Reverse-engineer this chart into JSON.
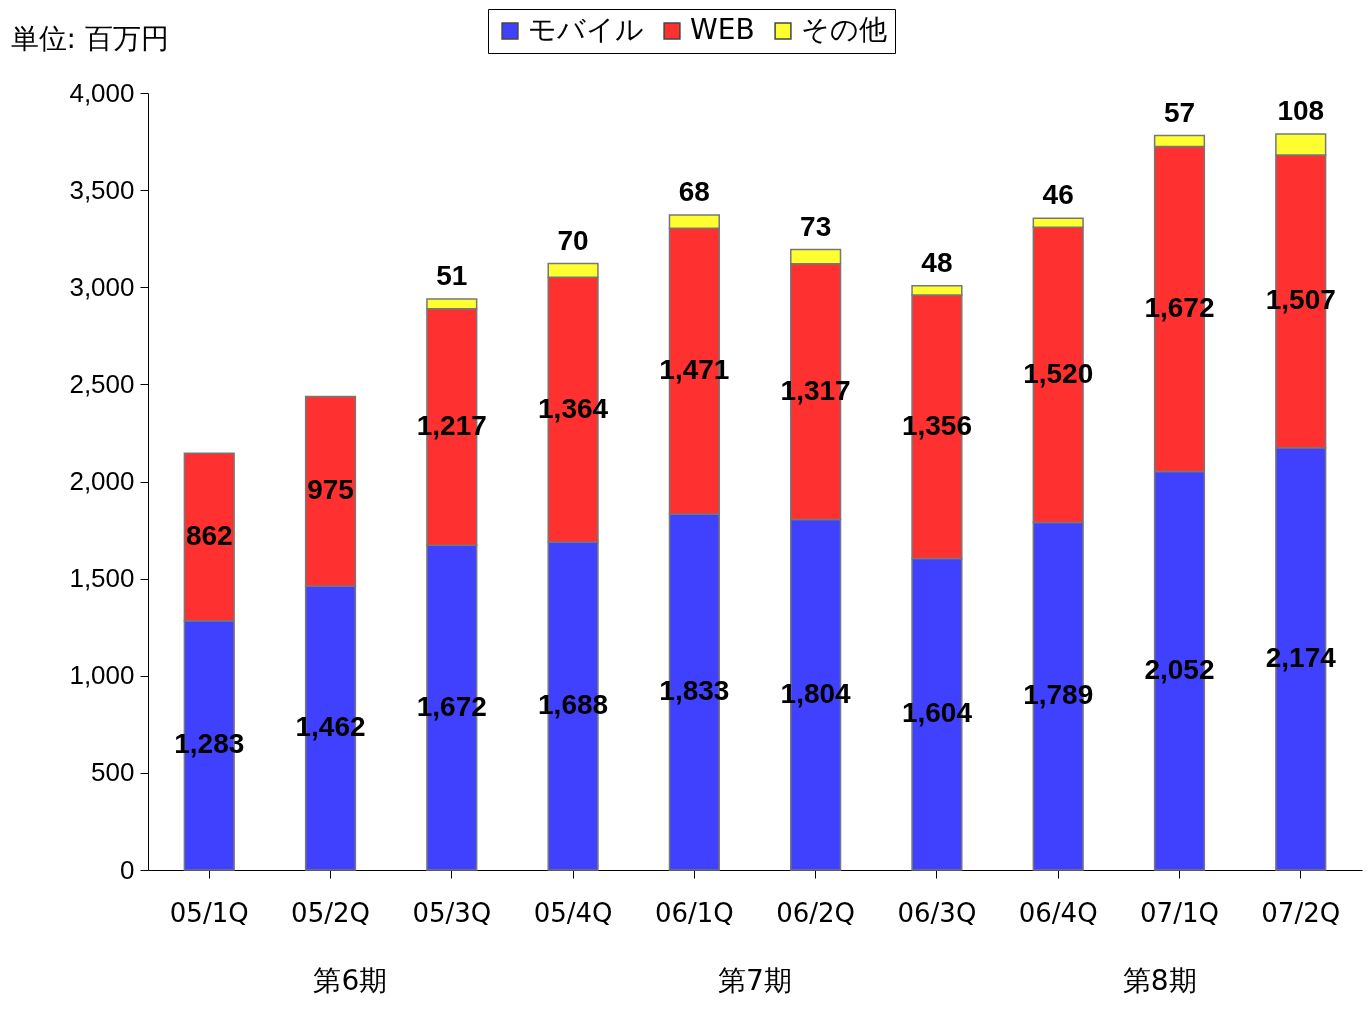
{
  "chart_data": {
    "type": "bar",
    "stacked": true,
    "ylabel": "単位: 百万円",
    "categories": [
      "05/1Q",
      "05/2Q",
      "05/3Q",
      "05/4Q",
      "06/1Q",
      "06/2Q",
      "06/3Q",
      "06/4Q",
      "07/1Q",
      "07/2Q"
    ],
    "series": [
      {
        "name": "モバイル",
        "color": "#4040ff",
        "values": [
          1283,
          1462,
          1672,
          1688,
          1833,
          1804,
          1604,
          1789,
          2052,
          2174
        ],
        "value_labels": [
          "1,283",
          "1,462",
          "1,672",
          "1,688",
          "1,833",
          "1,804",
          "1,604",
          "1,789",
          "2,052",
          "2,174"
        ]
      },
      {
        "name": "WEB",
        "color": "#ff3030",
        "values": [
          862,
          975,
          1217,
          1364,
          1471,
          1317,
          1356,
          1520,
          1672,
          1507
        ],
        "value_labels": [
          "862",
          "975",
          "1,217",
          "1,364",
          "1,471",
          "1,317",
          "1,356",
          "1,520",
          "1,672",
          "1,507"
        ]
      },
      {
        "name": "その他",
        "color": "#ffff30",
        "values": [
          null,
          null,
          51,
          70,
          68,
          73,
          48,
          46,
          57,
          108
        ],
        "value_labels": [
          null,
          null,
          "51",
          "70",
          "68",
          "73",
          "48",
          "46",
          "57",
          "108"
        ]
      }
    ],
    "ylim": [
      0,
      4000
    ],
    "yticks": [
      0,
      500,
      {
        "value": 1000,
        "label": "1,000"
      },
      {
        "value": 1500,
        "label": "1,500"
      },
      {
        "value": 2000,
        "label": "2,000"
      },
      {
        "value": 2500,
        "label": "2,500"
      },
      {
        "value": 3000,
        "label": "3,000"
      },
      {
        "value": 3500,
        "label": "3,500"
      },
      {
        "value": 4000,
        "label": "4,000"
      }
    ],
    "legend": "top",
    "grid": false,
    "annotations": [
      "第6期",
      "第7期",
      "第8期"
    ]
  }
}
